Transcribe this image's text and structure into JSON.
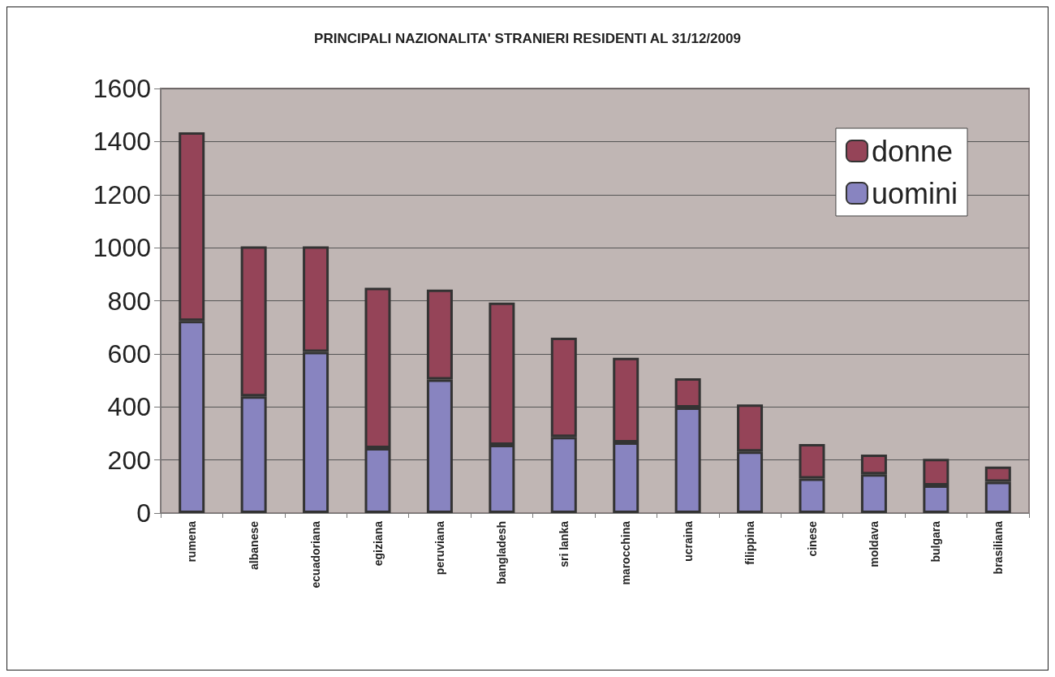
{
  "chart_data": {
    "type": "bar",
    "title": "PRINCIPALI NAZIONALITA' STRANIERI RESIDENTI AL 31/12/2009",
    "categories": [
      "rumena",
      "albanese",
      "ecuadoriana",
      "egiziana",
      "peruviana",
      "bangladesh",
      "sri lanka",
      "marocchina",
      "ucraina",
      "filippina",
      "cinese",
      "moldava",
      "bulgara",
      "brasiliana"
    ],
    "stacked": true,
    "series": [
      {
        "name": "uomini",
        "color": "#8884c0",
        "values": [
          724,
          440,
          607,
          245,
          503,
          257,
          287,
          266,
          398,
          232,
          130,
          146,
          104,
          118
        ]
      },
      {
        "name": "donne",
        "color": "#954458",
        "values": [
          711,
          565,
          398,
          604,
          339,
          536,
          374,
          319,
          110,
          177,
          130,
          74,
          100,
          57
        ]
      }
    ],
    "ylim": [
      0,
      1600
    ],
    "yticks": [
      0,
      200,
      400,
      600,
      800,
      1000,
      1200,
      1400,
      1600
    ],
    "grid": "y",
    "legend": "top right"
  }
}
